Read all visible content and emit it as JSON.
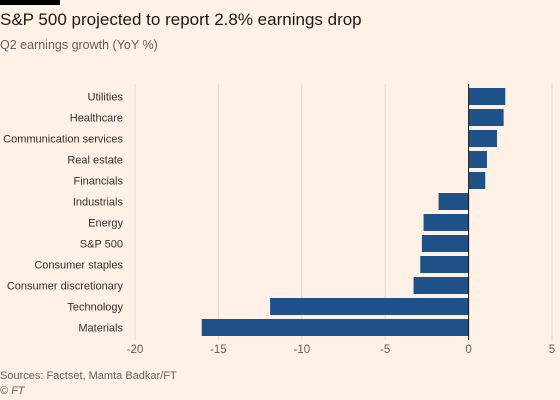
{
  "title": "S&P 500 projected to report 2.8% earnings drop",
  "subtitle": "Q2 earnings growth (YoY %)",
  "source": "Sources: Factset, Mamta Badkar/FT",
  "credit": "© FT",
  "colors": {
    "background": "#fff1e5",
    "bar": "#1e5188",
    "grid": "#e6d9ce",
    "text": "#33302e"
  },
  "chart_data": {
    "type": "bar",
    "orientation": "horizontal",
    "title": "S&P 500 projected to report 2.8% earnings drop",
    "subtitle": "Q2 earnings growth (YoY %)",
    "categories": [
      "Utilities",
      "Healthcare",
      "Communication services",
      "Real estate",
      "Financials",
      "Industrials",
      "Energy",
      "S&P 500",
      "Consumer staples",
      "Consumer discretionary",
      "Technology",
      "Materials"
    ],
    "values": [
      2.2,
      2.1,
      1.7,
      1.1,
      1.0,
      -1.8,
      -2.7,
      -2.8,
      -2.9,
      -3.3,
      -11.9,
      -16.0
    ],
    "xlim": [
      -20,
      5
    ],
    "xticks": [
      -20,
      -15,
      -10,
      -5,
      0,
      5
    ],
    "grid": true
  }
}
